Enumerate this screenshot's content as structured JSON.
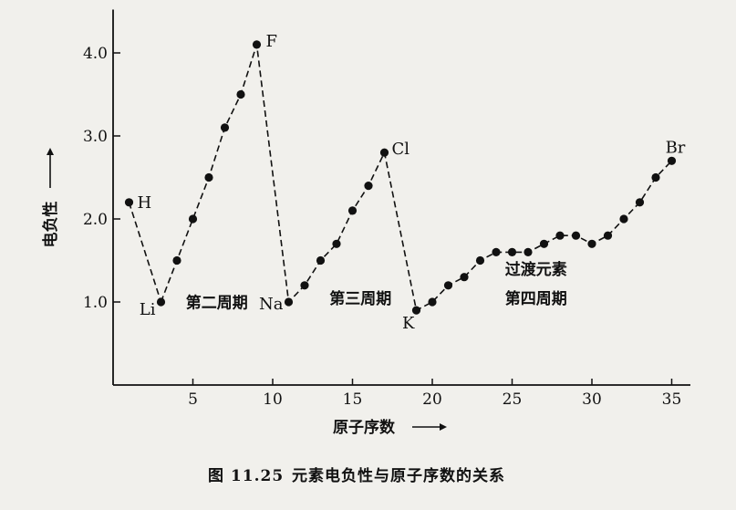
{
  "caption": {
    "figure_no": "图 11.25",
    "text": "元素电负性与原子序数的关系"
  },
  "chart_data": {
    "type": "line",
    "ylabel": "电负性",
    "xlabel": "原子序数",
    "xlim": [
      0,
      36
    ],
    "ylim": [
      0,
      4.5
    ],
    "xticks": [
      5,
      10,
      15,
      20,
      25,
      30,
      35
    ],
    "yticks": [
      "1.0",
      "2.0",
      "3.0",
      "4.0"
    ],
    "grid": false,
    "series": [
      {
        "x": [
          1,
          3
        ],
        "y": [
          2.2,
          1.0
        ]
      },
      {
        "x": [
          3,
          4,
          5,
          6,
          7,
          8,
          9,
          11,
          12,
          13,
          14,
          15,
          16,
          17,
          19,
          20,
          21,
          22,
          23,
          24,
          25,
          26,
          27,
          28,
          29,
          30,
          31,
          32,
          33,
          34,
          35
        ],
        "y": [
          1.0,
          1.5,
          2.0,
          2.5,
          3.1,
          3.5,
          4.1,
          1.0,
          1.2,
          1.5,
          1.7,
          2.1,
          2.4,
          2.8,
          0.9,
          1.0,
          1.2,
          1.3,
          1.5,
          1.6,
          1.6,
          1.6,
          1.7,
          1.8,
          1.8,
          1.7,
          1.8,
          2.0,
          2.2,
          2.5,
          2.7
        ]
      }
    ],
    "point_labels": [
      {
        "text": "H",
        "x": 1,
        "y": 2.2
      },
      {
        "text": "Li",
        "x": 3,
        "y": 1.0
      },
      {
        "text": "F",
        "x": 9,
        "y": 4.1
      },
      {
        "text": "Na",
        "x": 11,
        "y": 1.0
      },
      {
        "text": "Cl",
        "x": 17,
        "y": 2.8
      },
      {
        "text": "K",
        "x": 19,
        "y": 0.9
      },
      {
        "text": "Br",
        "x": 35,
        "y": 2.7
      }
    ],
    "annotations": [
      {
        "text": "第二周期",
        "x": 6.5,
        "y": 0.93
      },
      {
        "text": "第三周期",
        "x": 15.5,
        "y": 0.98
      },
      {
        "text": "第四周期",
        "x": 26.5,
        "y": 0.98
      },
      {
        "text": "过渡元素",
        "x": 26.5,
        "y": 1.33
      }
    ]
  }
}
